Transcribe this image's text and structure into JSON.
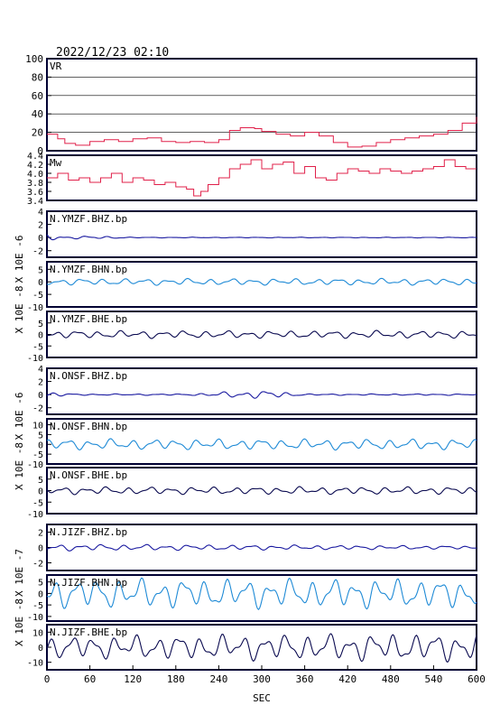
{
  "title": "2022/12/23 02:10",
  "x_axis": {
    "label": "SEC",
    "ticks": [
      0,
      60,
      120,
      180,
      240,
      300,
      360,
      420,
      480,
      540,
      600
    ],
    "range": [
      0,
      600
    ]
  },
  "unit_labels": [
    "X 10E -6",
    "X 10E -8",
    "X 10E -6",
    "X 10E -8",
    "X 10E -7",
    "X 10E -8"
  ],
  "colors": {
    "frame": "#000033",
    "vr_mw": "#e0204a",
    "bhz": "#1a1aa0",
    "bhn": "#1e8ad6",
    "bhe": "#0a0a50"
  },
  "chart_data": [
    {
      "type": "line",
      "label": "VR",
      "ylim": [
        0,
        100
      ],
      "yticks": [
        0,
        20,
        40,
        60,
        80,
        100
      ],
      "grid": true,
      "x": [
        0,
        15,
        25,
        40,
        60,
        80,
        100,
        120,
        140,
        160,
        180,
        200,
        220,
        240,
        255,
        270,
        290,
        300,
        320,
        340,
        360,
        380,
        400,
        420,
        440,
        460,
        480,
        500,
        520,
        540,
        560,
        580,
        600
      ],
      "y": [
        18,
        13,
        8,
        6,
        10,
        12,
        10,
        13,
        14,
        10,
        9,
        10,
        9,
        12,
        22,
        25,
        24,
        21,
        18,
        16,
        20,
        16,
        9,
        4,
        5,
        9,
        12,
        14,
        16,
        18,
        22,
        30,
        37
      ]
    },
    {
      "type": "line",
      "label": "Mw",
      "ylim": [
        3.4,
        4.4
      ],
      "yticks": [
        3.4,
        3.6,
        3.8,
        4.0,
        4.2,
        4.4
      ],
      "grid": false,
      "x": [
        0,
        15,
        30,
        45,
        60,
        75,
        90,
        105,
        120,
        135,
        150,
        165,
        180,
        195,
        205,
        215,
        225,
        240,
        255,
        270,
        285,
        300,
        315,
        330,
        345,
        360,
        375,
        390,
        405,
        420,
        435,
        450,
        465,
        480,
        495,
        510,
        525,
        540,
        555,
        570,
        585,
        600
      ],
      "y": [
        3.9,
        4.0,
        3.85,
        3.9,
        3.8,
        3.9,
        4.0,
        3.8,
        3.9,
        3.85,
        3.75,
        3.8,
        3.7,
        3.65,
        3.5,
        3.6,
        3.75,
        3.9,
        4.1,
        4.2,
        4.3,
        4.1,
        4.2,
        4.25,
        4.0,
        4.15,
        3.9,
        3.85,
        4.0,
        4.1,
        4.05,
        4.0,
        4.1,
        4.05,
        4.0,
        4.05,
        4.1,
        4.15,
        4.3,
        4.15,
        4.1,
        4.1
      ]
    },
    {
      "type": "line",
      "label": "N.YMZF.BHZ.bp",
      "ylim": [
        -3,
        4
      ],
      "yticks": [
        -2,
        0,
        2,
        4
      ],
      "color": "bhz",
      "amps": [
        [
          0,
          0.5
        ],
        [
          30,
          0.15
        ],
        [
          60,
          0.25
        ],
        [
          120,
          0.05
        ],
        [
          600,
          0.05
        ]
      ]
    },
    {
      "type": "line",
      "label": "N.YMZF.BHN.bp",
      "ylim": [
        -10,
        8
      ],
      "yticks": [
        -10,
        -5,
        0,
        5
      ],
      "color": "bhn",
      "amps": [
        [
          0,
          1.2
        ],
        [
          600,
          1.2
        ]
      ]
    },
    {
      "type": "line",
      "label": "N.YMZF.BHE.bp",
      "ylim": [
        -10,
        10
      ],
      "yticks": [
        -10,
        -5,
        0,
        5
      ],
      "color": "bhe",
      "amps": [
        [
          0,
          1.5
        ],
        [
          600,
          1.5
        ]
      ]
    },
    {
      "type": "line",
      "label": "N.ONSF.BHZ.bp",
      "ylim": [
        -3,
        4
      ],
      "yticks": [
        -2,
        0,
        2,
        4
      ],
      "color": "bhz",
      "amps": [
        [
          0,
          0.4
        ],
        [
          40,
          0.1
        ],
        [
          200,
          0.1
        ],
        [
          250,
          0.4
        ],
        [
          310,
          0.6
        ],
        [
          360,
          0.1
        ],
        [
          600,
          0.1
        ]
      ]
    },
    {
      "type": "line",
      "label": "N.ONSF.BHN.bp",
      "ylim": [
        -10,
        13
      ],
      "yticks": [
        -10,
        -5,
        0,
        5,
        10
      ],
      "color": "bhn",
      "amps": [
        [
          0,
          2.5
        ],
        [
          600,
          2.5
        ]
      ]
    },
    {
      "type": "line",
      "label": "N.ONSF.BHE.bp",
      "ylim": [
        -10,
        10
      ],
      "yticks": [
        -10,
        -5,
        0,
        5
      ],
      "color": "bhe",
      "amps": [
        [
          0,
          1.5
        ],
        [
          600,
          1.5
        ]
      ]
    },
    {
      "type": "line",
      "label": "N.JIZF.BHZ.bp",
      "ylim": [
        -3,
        3
      ],
      "yticks": [
        -2,
        0,
        2
      ],
      "color": "bhz",
      "amps": [
        [
          0,
          0.4
        ],
        [
          600,
          0.2
        ]
      ]
    },
    {
      "type": "line",
      "label": "N.JIZF.BHN.bp",
      "ylim": [
        -12,
        8
      ],
      "yticks": [
        -10,
        -5,
        0,
        5
      ],
      "color": "bhn",
      "amps": [
        [
          0,
          6
        ],
        [
          600,
          6
        ]
      ]
    },
    {
      "type": "line",
      "label": "N.JIZF.BHE.bp",
      "ylim": [
        -15,
        15
      ],
      "yticks": [
        -10,
        0,
        10
      ],
      "color": "bhe",
      "amps": [
        [
          0,
          7
        ],
        [
          600,
          9
        ]
      ]
    }
  ]
}
